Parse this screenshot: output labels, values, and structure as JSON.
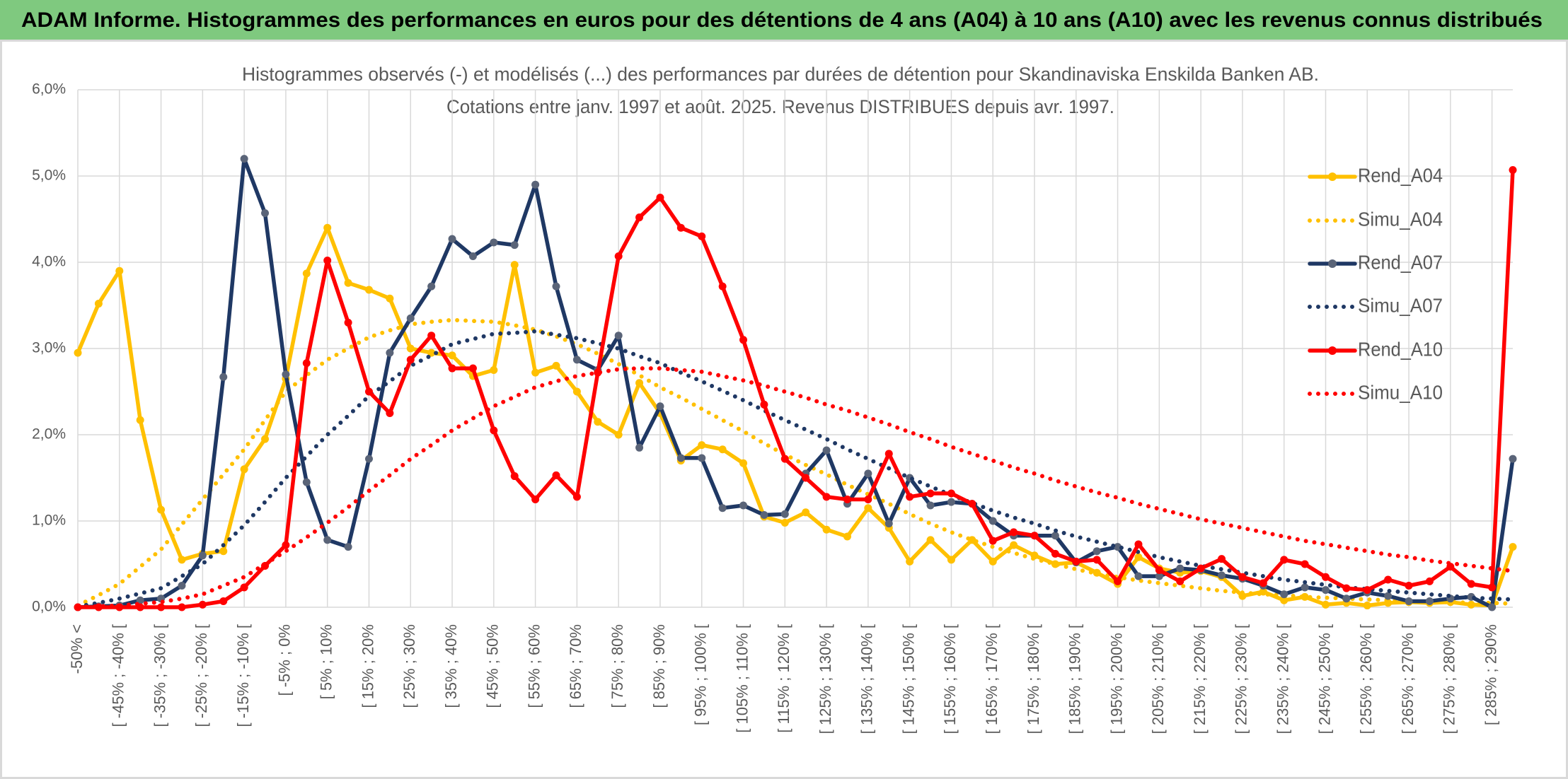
{
  "header": {
    "title": "ADAM Informe. Histogrammes des performances en euros pour des détentions de 4 ans (A04) à 10 ans (A10) avec les revenus connus distribués"
  },
  "chart_data": {
    "type": "line",
    "title": "Histogrammes observés (-) et modélisés (...) des performances par durées de détention pour Skandinaviska Enskilda Banken AB.",
    "subtitle": "Cotations entre janv. 1997 et août. 2025. Revenus DISTRIBUES depuis avr. 1997.",
    "categories": [
      "-50% <",
      null,
      "[ -45% ; -40% [",
      null,
      "[ -35% ; -30% [",
      null,
      "[ -25% ; -20% [",
      null,
      "[ -15% ; -10% [",
      null,
      "[ -5% ; 0%",
      null,
      "[ 5% ; 10%",
      null,
      "[ 15% ; 20%",
      null,
      "[ 25% ; 30%",
      null,
      "[ 35% ; 40%",
      null,
      "[ 45% ; 50%",
      null,
      "[ 55% ; 60%",
      null,
      "[ 65% ; 70%",
      null,
      "[ 75% ; 80%",
      null,
      "[ 85% ; 90%",
      null,
      "[ 95% ; 100% [",
      null,
      "[ 105% ; 110% [",
      null,
      "[ 115% ; 120% [",
      null,
      "[ 125% ; 130% [",
      null,
      "[ 135% ; 140% [",
      null,
      "[ 145% ; 150% [",
      null,
      "[ 155% ; 160% [",
      null,
      "[ 165% ; 170% [",
      null,
      "[ 175% ; 180% [",
      null,
      "[ 185% ; 190% [",
      null,
      "[ 195% ; 200% [",
      null,
      "[ 205% ; 210% [",
      null,
      "[ 215% ; 220% [",
      null,
      "[ 225% ; 230% [",
      null,
      "[ 235% ; 240% [",
      null,
      "[ 245% ; 250% [",
      null,
      "[ 255% ; 260% [",
      null,
      "[ 265% ; 270% [",
      null,
      "[ 275% ; 280% [",
      null,
      "[ 285% ; 290%",
      null
    ],
    "ylim": [
      0,
      6
    ],
    "yticks": [
      {
        "value": 0,
        "label": "0,0%"
      },
      {
        "value": 1,
        "label": "1,0%"
      },
      {
        "value": 2,
        "label": "2,0%"
      },
      {
        "value": 3,
        "label": "3,0%"
      },
      {
        "value": 4,
        "label": "4,0%"
      },
      {
        "value": 5,
        "label": "5,0%"
      },
      {
        "value": 6,
        "label": "6,0%"
      }
    ],
    "grid": true,
    "legend": "right",
    "series": [
      {
        "name": "Rend_A04",
        "color": "#ffc000",
        "marker_color": "#ffc000",
        "style": "solid",
        "values": [
          2.95,
          3.52,
          3.9,
          2.17,
          1.13,
          0.55,
          0.62,
          0.65,
          1.6,
          1.95,
          2.65,
          3.87,
          4.4,
          3.76,
          3.68,
          3.58,
          3.0,
          2.95,
          2.92,
          2.68,
          2.75,
          3.97,
          2.72,
          2.8,
          2.5,
          2.15,
          2.0,
          2.6,
          2.25,
          1.7,
          1.88,
          1.83,
          1.67,
          1.05,
          0.98,
          1.1,
          0.9,
          0.82,
          1.15,
          0.92,
          0.53,
          0.78,
          0.55,
          0.78,
          0.53,
          0.72,
          0.6,
          0.5,
          0.52,
          0.4,
          0.27,
          0.58,
          0.45,
          0.4,
          0.42,
          0.35,
          0.13,
          0.18,
          0.08,
          0.12,
          0.03,
          0.05,
          0.02,
          0.05,
          0.06,
          0.05,
          0.06,
          0.03,
          0.02,
          0.7
        ]
      },
      {
        "name": "Simu_A04",
        "color": "#ffc000",
        "style": "dotted",
        "values": [
          0.02,
          0.14,
          0.27,
          0.47,
          0.67,
          0.96,
          1.25,
          1.54,
          1.83,
          2.17,
          2.5,
          2.69,
          2.87,
          3.0,
          3.13,
          3.21,
          3.28,
          3.31,
          3.33,
          3.32,
          3.31,
          3.27,
          3.22,
          3.14,
          3.05,
          2.94,
          2.82,
          2.69,
          2.55,
          2.43,
          2.3,
          2.17,
          2.04,
          1.9,
          1.77,
          1.65,
          1.54,
          1.42,
          1.31,
          1.2,
          1.08,
          0.97,
          0.87,
          0.78,
          0.7,
          0.63,
          0.56,
          0.5,
          0.44,
          0.39,
          0.35,
          0.31,
          0.28,
          0.25,
          0.22,
          0.19,
          0.17,
          0.15,
          0.14,
          0.12,
          0.11,
          0.1,
          0.09,
          0.08,
          0.07,
          0.06,
          0.06,
          0.05,
          0.05,
          0.04
        ]
      },
      {
        "name": "Rend_A07",
        "color": "#1f3864",
        "marker_color": "#5a6478",
        "style": "solid",
        "values": [
          0,
          0.01,
          0.02,
          0.08,
          0.1,
          0.25,
          0.6,
          2.67,
          5.2,
          4.57,
          2.7,
          1.45,
          0.78,
          0.7,
          1.72,
          2.95,
          3.35,
          3.72,
          4.27,
          4.07,
          4.23,
          4.2,
          4.9,
          3.72,
          2.87,
          2.75,
          3.15,
          1.85,
          2.33,
          1.73,
          1.73,
          1.15,
          1.18,
          1.07,
          1.08,
          1.55,
          1.82,
          1.2,
          1.55,
          0.97,
          1.5,
          1.18,
          1.22,
          1.2,
          1.0,
          0.83,
          0.83,
          0.83,
          0.52,
          0.65,
          0.7,
          0.36,
          0.36,
          0.45,
          0.43,
          0.37,
          0.33,
          0.25,
          0.15,
          0.23,
          0.2,
          0.1,
          0.17,
          0.13,
          0.07,
          0.07,
          0.1,
          0.12,
          0,
          1.72
        ]
      },
      {
        "name": "Simu_A07",
        "color": "#1f3864",
        "style": "dotted",
        "values": [
          0.01,
          0.05,
          0.1,
          0.16,
          0.22,
          0.36,
          0.5,
          0.72,
          0.95,
          1.22,
          1.5,
          1.75,
          2.0,
          2.22,
          2.45,
          2.62,
          2.8,
          2.92,
          3.05,
          3.11,
          3.17,
          3.18,
          3.2,
          3.16,
          3.12,
          3.06,
          3.0,
          2.91,
          2.83,
          2.72,
          2.62,
          2.51,
          2.4,
          2.28,
          2.17,
          2.06,
          1.95,
          1.83,
          1.72,
          1.61,
          1.5,
          1.4,
          1.3,
          1.21,
          1.12,
          1.04,
          0.97,
          0.89,
          0.82,
          0.76,
          0.7,
          0.64,
          0.58,
          0.53,
          0.48,
          0.44,
          0.4,
          0.36,
          0.32,
          0.29,
          0.26,
          0.23,
          0.21,
          0.19,
          0.17,
          0.15,
          0.13,
          0.11,
          0.1,
          0.09
        ]
      },
      {
        "name": "Rend_A10",
        "color": "#ff0000",
        "marker_color": "#ff0000",
        "style": "solid",
        "values": [
          0,
          0,
          0,
          0,
          0,
          0,
          0.03,
          0.07,
          0.23,
          0.48,
          0.72,
          2.83,
          4.02,
          3.3,
          2.5,
          2.25,
          2.87,
          3.15,
          2.77,
          2.77,
          2.05,
          1.52,
          1.25,
          1.53,
          1.28,
          2.72,
          4.07,
          4.52,
          4.75,
          4.4,
          4.3,
          3.72,
          3.1,
          2.35,
          1.72,
          1.5,
          1.28,
          1.25,
          1.25,
          1.78,
          1.28,
          1.32,
          1.32,
          1.2,
          0.77,
          0.87,
          0.83,
          0.62,
          0.53,
          0.55,
          0.3,
          0.73,
          0.43,
          0.3,
          0.45,
          0.56,
          0.35,
          0.28,
          0.55,
          0.5,
          0.35,
          0.22,
          0.2,
          0.32,
          0.25,
          0.3,
          0.47,
          0.27,
          0.23,
          5.07
        ]
      },
      {
        "name": "Simu_A10",
        "color": "#ff0000",
        "style": "dotted",
        "values": [
          0,
          0.01,
          0.02,
          0.04,
          0.06,
          0.1,
          0.15,
          0.25,
          0.35,
          0.5,
          0.65,
          0.81,
          0.98,
          1.16,
          1.35,
          1.53,
          1.72,
          1.88,
          2.05,
          2.19,
          2.33,
          2.44,
          2.55,
          2.62,
          2.68,
          2.72,
          2.76,
          2.77,
          2.77,
          2.75,
          2.73,
          2.68,
          2.63,
          2.57,
          2.5,
          2.43,
          2.35,
          2.28,
          2.2,
          2.12,
          2.03,
          1.95,
          1.86,
          1.78,
          1.7,
          1.62,
          1.55,
          1.47,
          1.4,
          1.33,
          1.27,
          1.2,
          1.14,
          1.08,
          1.02,
          0.97,
          0.92,
          0.87,
          0.82,
          0.77,
          0.73,
          0.69,
          0.65,
          0.61,
          0.58,
          0.54,
          0.51,
          0.48,
          0.45,
          0.42
        ]
      }
    ]
  }
}
